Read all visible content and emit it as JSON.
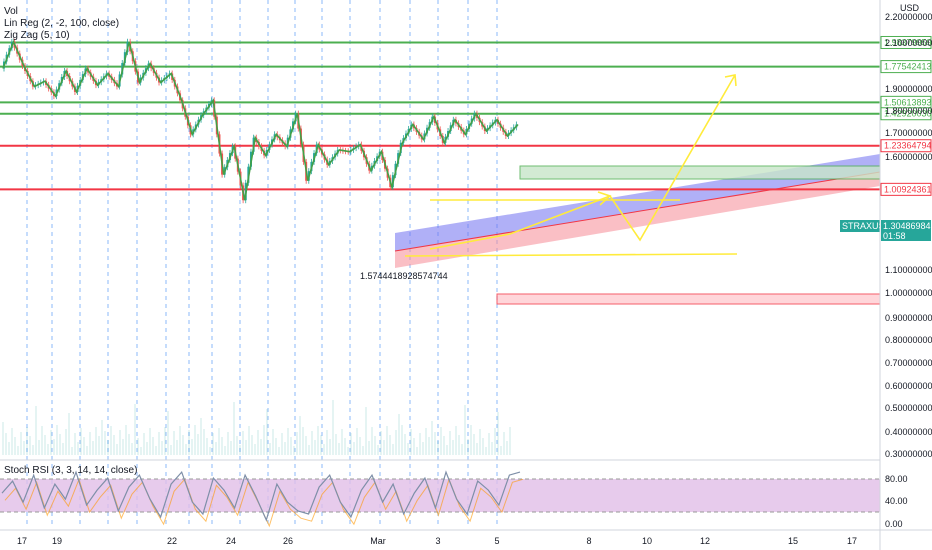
{
  "indicators": {
    "vol": "Vol",
    "linreg": "Lin Reg (2, -2, 100, close)",
    "zigzag": "Zig Zag (5, 10)",
    "stoch": "Stoch RSI (3, 3, 14, 14, close)"
  },
  "price_axis": {
    "currency": "USD",
    "ticks": [
      "2.20000000",
      "2.10000000",
      "1.90000000",
      "1.80000000",
      "1.70000000",
      "1.60000000",
      "1.10000000",
      "1.00000000",
      "0.90000000",
      "0.80000000",
      "0.70000000",
      "0.60000000",
      "0.50000000",
      "0.40000000",
      "0.30000000"
    ],
    "log_scale": true
  },
  "time_axis": {
    "ticks": [
      "17",
      "19",
      "22",
      "24",
      "26",
      "Mar",
      "3",
      "5",
      "8",
      "10",
      "12",
      "15",
      "17"
    ]
  },
  "stoch_axis": {
    "ticks": [
      "80.00",
      "40.00",
      "0.00"
    ]
  },
  "symbol": {
    "name": "STRAXUSD",
    "price": "1.30486984",
    "countdown": "01:58",
    "color": "#26a69a"
  },
  "annotation": "1.5744418928574744",
  "colors": {
    "green_level": "#4caf50",
    "red_level": "#f23645",
    "zigzag": "#43a047",
    "candles_up": "#26a69a",
    "candles_down": "#ef5350",
    "stoch_band": "#e1bee7",
    "projection": "#ffeb3b"
  },
  "chart_data": {
    "type": "line",
    "y_scale": "log",
    "ylim": [
      0.3,
      2.2
    ],
    "x_ticks": [
      "17",
      "19",
      "22",
      "24",
      "26",
      "Mar",
      "3",
      "5",
      "8",
      "10",
      "12",
      "15",
      "17"
    ],
    "horizontal_levels": [
      {
        "value": 1.98379959,
        "label": "1.98379959",
        "color": "#4caf50"
      },
      {
        "value": 1.77542413,
        "label": "1.77542413",
        "color": "#4caf50"
      },
      {
        "value": 1.50613893,
        "label": "1.50613893",
        "color": "#4caf50"
      },
      {
        "value": 1.4292003,
        "label": "1.42920030",
        "color": "#4caf50"
      },
      {
        "value": 1.23364794,
        "label": "1.23364794",
        "color": "#f23645"
      },
      {
        "value": 1.00924361,
        "label": "1.00924361",
        "color": "#f23645"
      }
    ],
    "series": [
      {
        "values": [
          1.76,
          1.99,
          1.78,
          1.62,
          1.66,
          1.55,
          1.74,
          1.58,
          1.76,
          1.63,
          1.72,
          1.62,
          1.99,
          1.65,
          1.8,
          1.65,
          1.72,
          1.52,
          1.3,
          1.42,
          1.52,
          1.08,
          1.23,
          0.96,
          1.28,
          1.18,
          1.3,
          1.23,
          1.43,
          1.05,
          1.24,
          1.13,
          1.21,
          1.2,
          1.24,
          1.1,
          1.2,
          1.02,
          1.25,
          1.36,
          1.27,
          1.41,
          1.25,
          1.39,
          1.3,
          1.43,
          1.32,
          1.39,
          1.29,
          1.36
        ]
      }
    ],
    "stoch_values": [
      55,
      75,
      40,
      85,
      30,
      70,
      45,
      90,
      35,
      60,
      80,
      25,
      65,
      85,
      45,
      15,
      70,
      90,
      40,
      20,
      80,
      60,
      30,
      85,
      50,
      10,
      70,
      40,
      25,
      20,
      65,
      85,
      40,
      15,
      60,
      85,
      40,
      70,
      20,
      55,
      80,
      30,
      90,
      45,
      20,
      75,
      60,
      35,
      85,
      90
    ]
  }
}
